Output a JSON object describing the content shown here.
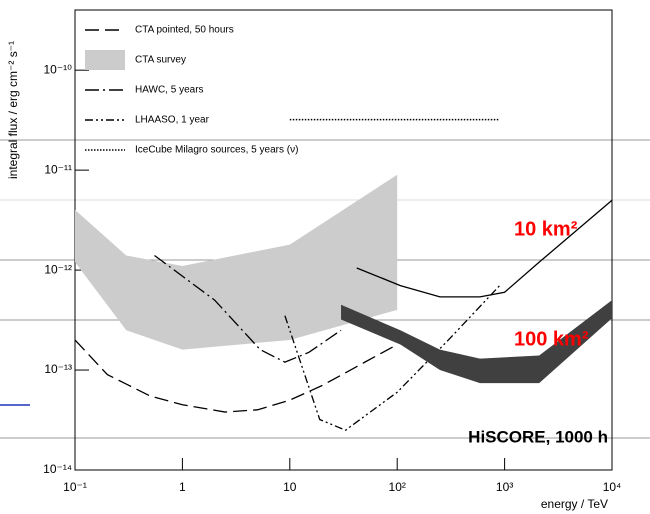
{
  "chart_data": {
    "type": "line",
    "log_x": true,
    "log_y": true,
    "xlabel": "energy / TeV",
    "ylabel": "integral flux / erg cm⁻² s⁻¹",
    "xlim": [
      0.1,
      10000
    ],
    "ylim": [
      1e-14,
      4e-10
    ],
    "xticks": [
      {
        "value": 0.1,
        "label": "10⁻¹"
      },
      1,
      10,
      {
        "value": 100,
        "label": "10²"
      },
      {
        "value": 1000,
        "label": "10³"
      },
      {
        "value": 10000,
        "label": "10⁴"
      }
    ],
    "yticks": [
      {
        "value": 1e-14,
        "label": "10⁻¹⁴"
      },
      {
        "value": 1e-13,
        "label": "10⁻¹³"
      },
      {
        "value": 1e-12,
        "label": "10⁻¹²"
      },
      {
        "value": 1e-11,
        "label": "10⁻¹¹"
      },
      {
        "value": 1e-10,
        "label": "10⁻¹⁰"
      }
    ],
    "legend": "top-left",
    "series": [
      {
        "name": "CTA pointed, 50 hours",
        "kind": "line",
        "color": "#000000",
        "dash": "long",
        "x": [
          0.1,
          0.2,
          0.5,
          1,
          2.5,
          5,
          10,
          20,
          50,
          100
        ],
        "values": [
          2e-13,
          9e-14,
          5.5e-14,
          4.5e-14,
          3.8e-14,
          4e-14,
          5e-14,
          7e-14,
          1.2e-13,
          1.8e-13
        ]
      },
      {
        "name": "CTA survey",
        "kind": "band",
        "color": "#cccccc",
        "x": [
          0.1,
          0.3,
          1,
          10,
          100
        ],
        "lower": [
          1.2e-12,
          2.5e-13,
          1.6e-13,
          2e-13,
          4e-13
        ],
        "upper": [
          4e-12,
          1.4e-12,
          1.1e-12,
          1.8e-12,
          9e-12
        ]
      },
      {
        "name": "HAWC, 5 years",
        "kind": "line",
        "color": "#000000",
        "dash": "dashdot",
        "x": [
          0.55,
          2,
          5.3,
          9,
          15,
          30
        ],
        "values": [
          1.4e-12,
          5e-13,
          1.6e-13,
          1.2e-13,
          1.5e-13,
          2.5e-13
        ]
      },
      {
        "name": "LHAASO, 1 year",
        "kind": "line",
        "color": "#000000",
        "dash": "dashdotdot",
        "x": [
          9,
          19,
          33,
          100,
          300,
          900
        ],
        "values": [
          3.5e-13,
          3.2e-14,
          2.5e-14,
          6e-14,
          2e-13,
          7e-13
        ]
      },
      {
        "name": "IceCube Milagro sources, 5 years (ν)",
        "kind": "line",
        "color": "#000000",
        "dash": "dotted",
        "x": [
          10,
          900
        ],
        "values": [
          3.2e-11,
          3.2e-11
        ]
      }
    ],
    "hiscore_curves": [
      {
        "name": "10 km²",
        "kind": "line",
        "color": "#000000",
        "label_color": "#ff0000",
        "x": [
          42,
          107,
          250,
          590,
          1000,
          2100,
          10000
        ],
        "values": [
          1.05e-12,
          7e-13,
          5.4e-13,
          5.4e-13,
          6e-13,
          1.2e-12,
          5e-12
        ]
      },
      {
        "name": "100 km²",
        "kind": "band",
        "color": "#404040",
        "label_color": "#ff0000",
        "x": [
          30,
          107,
          250,
          590,
          2100,
          10000
        ],
        "lower": [
          3.2e-13,
          1.8e-13,
          1e-13,
          7.4e-14,
          7.4e-14,
          3.3e-13
        ],
        "upper": [
          4.5e-13,
          2.5e-13,
          1.6e-13,
          1.3e-13,
          1.4e-13,
          5e-13
        ]
      }
    ],
    "annotation": "HiSCORE, 1000 h"
  }
}
